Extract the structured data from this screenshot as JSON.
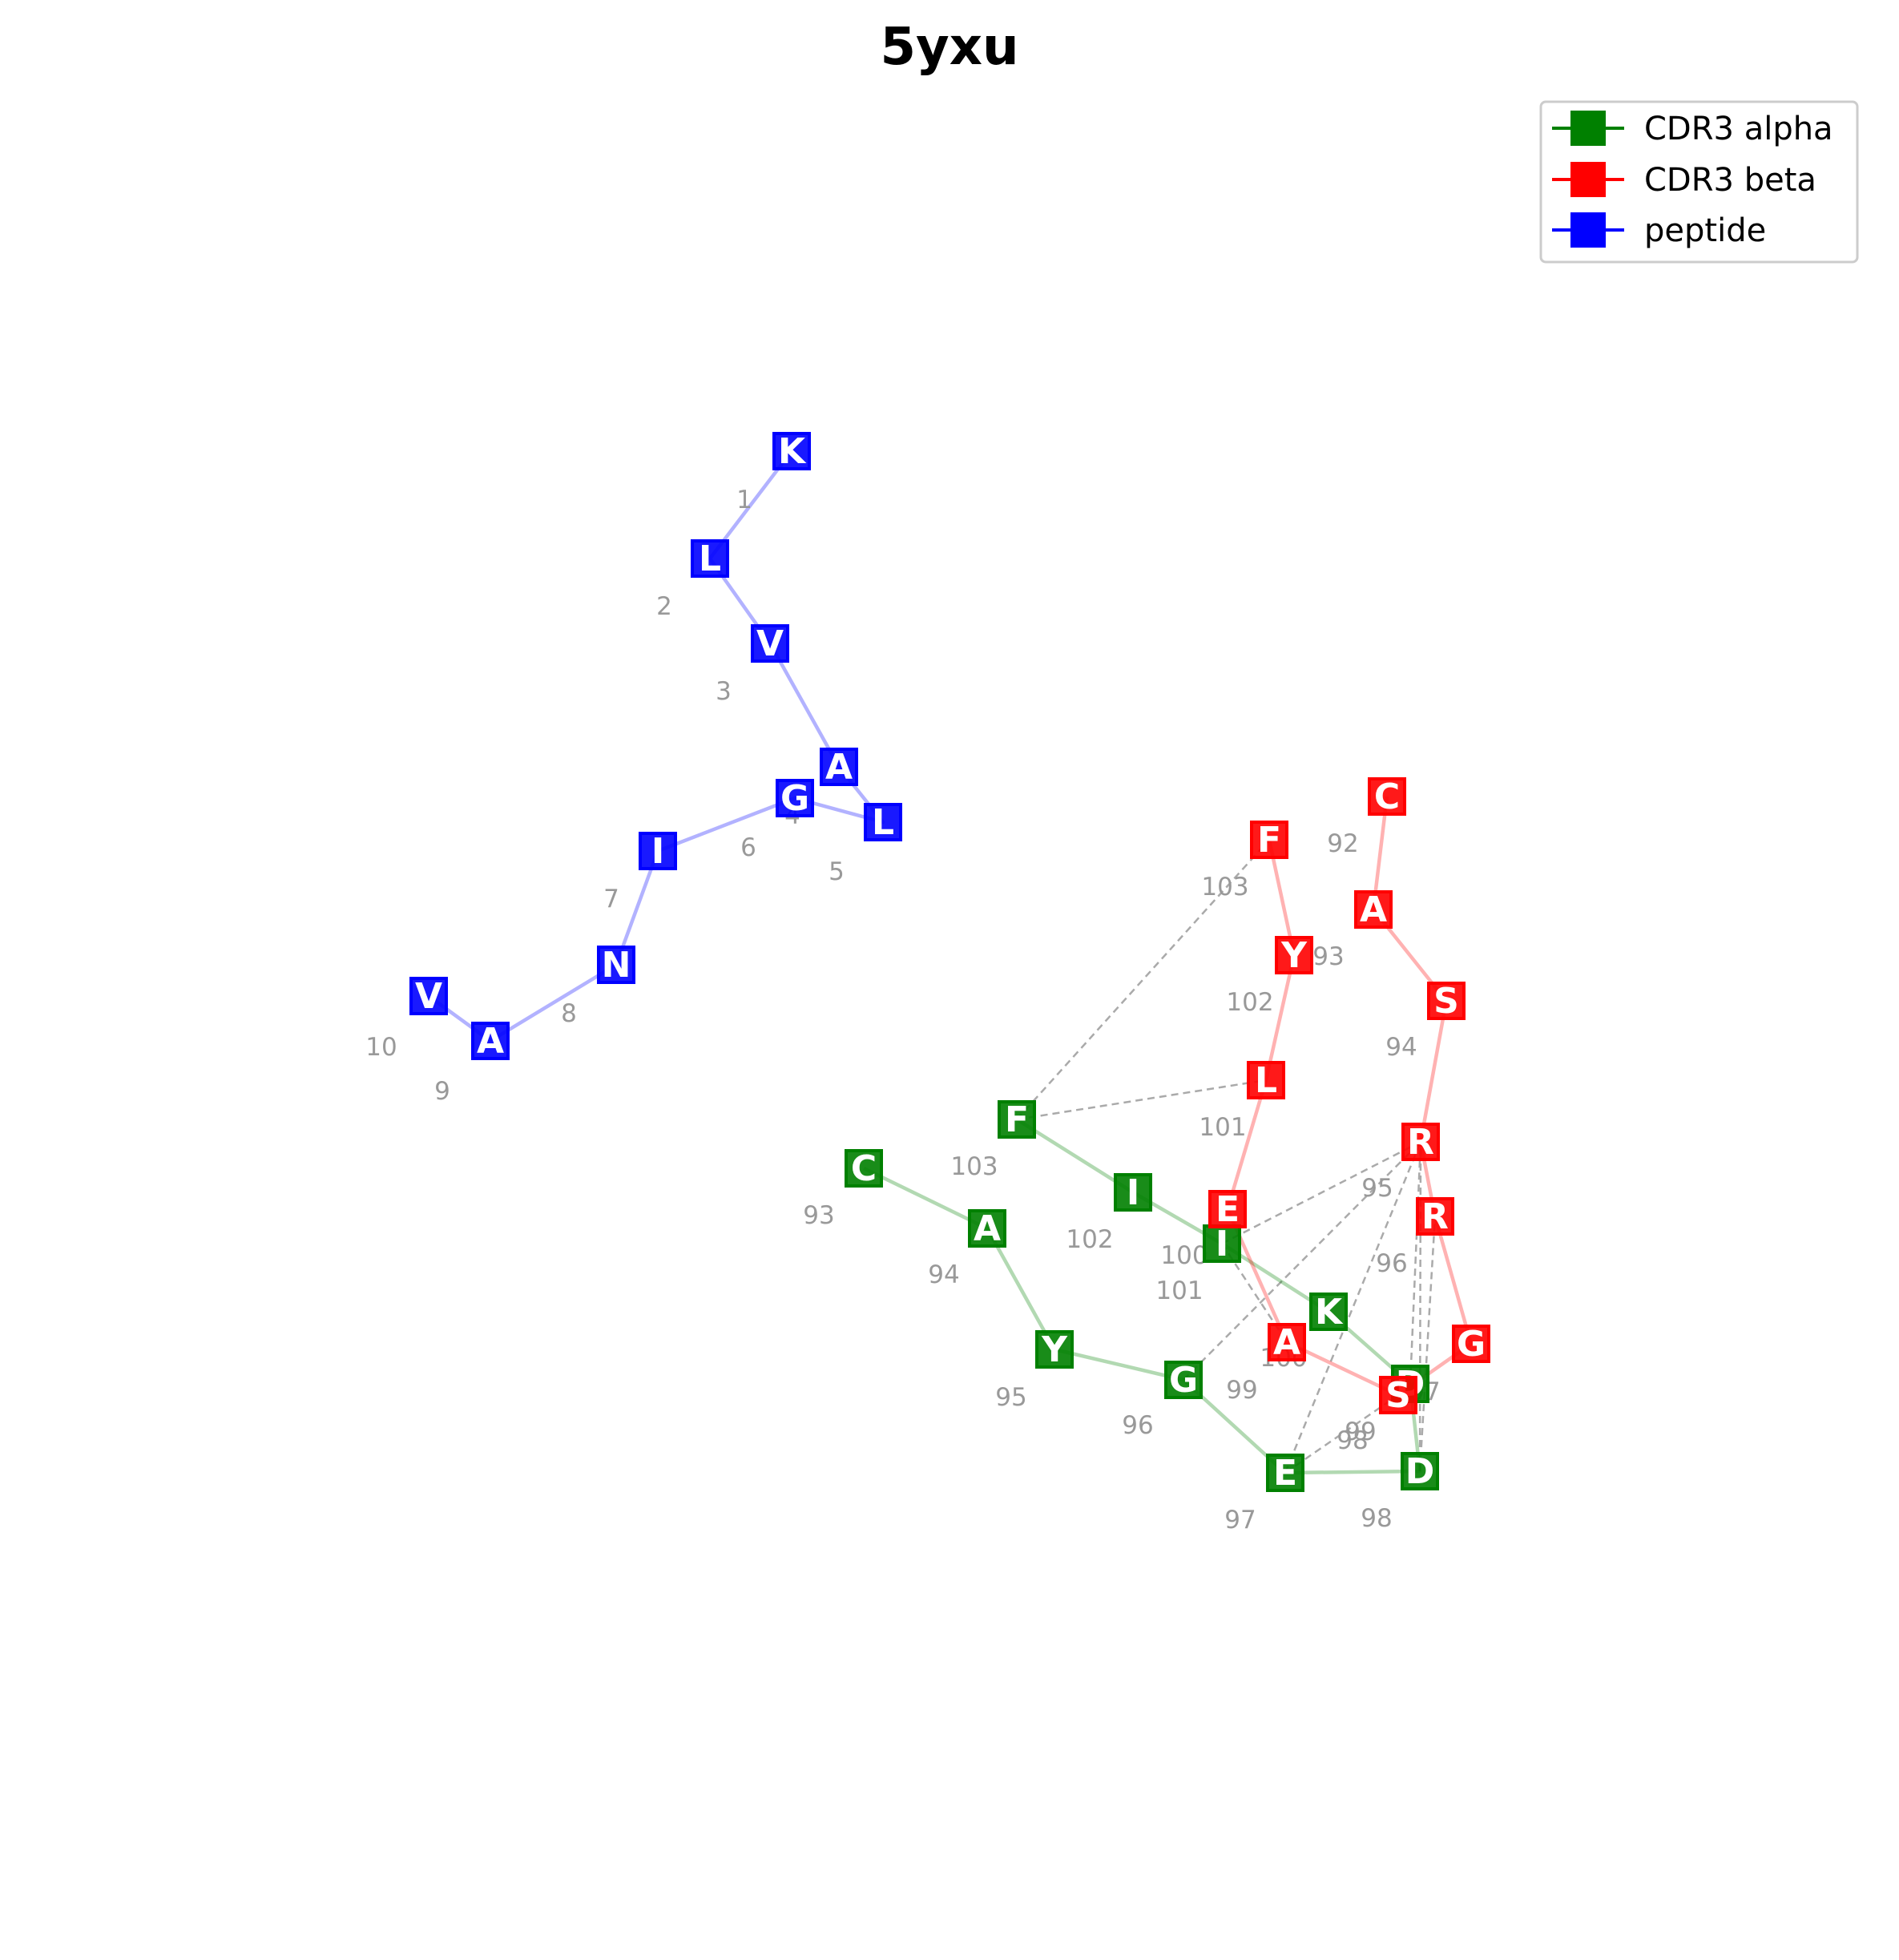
{
  "title": "5yxu",
  "legend": {
    "placement": "top-right",
    "entries": [
      {
        "label": "CDR3 alpha",
        "color": "#008000"
      },
      {
        "label": "CDR3 beta",
        "color": "#ff0000"
      },
      {
        "label": "peptide",
        "color": "#0000ff"
      }
    ]
  },
  "chains": [
    {
      "id": "peptide",
      "color": "#0000ff",
      "residues": [
        {
          "aa": "K",
          "num": "1"
        },
        {
          "aa": "L",
          "num": "2"
        },
        {
          "aa": "V",
          "num": "3"
        },
        {
          "aa": "A",
          "num": "4"
        },
        {
          "aa": "L",
          "num": "5"
        },
        {
          "aa": "G",
          "num": "6"
        },
        {
          "aa": "I",
          "num": "7"
        },
        {
          "aa": "N",
          "num": "8"
        },
        {
          "aa": "A",
          "num": "9"
        },
        {
          "aa": "V",
          "num": "10"
        }
      ]
    },
    {
      "id": "cdr3_alpha",
      "color": "#008000",
      "residues": [
        {
          "aa": "C",
          "num": "93"
        },
        {
          "aa": "A",
          "num": "94"
        },
        {
          "aa": "Y",
          "num": "95"
        },
        {
          "aa": "G",
          "num": "96"
        },
        {
          "aa": "E",
          "num": "97"
        },
        {
          "aa": "D",
          "num": "98"
        },
        {
          "aa": "D",
          "num": "99"
        },
        {
          "aa": "K",
          "num": "100"
        },
        {
          "aa": "I",
          "num": "101"
        },
        {
          "aa": "I",
          "num": "102"
        },
        {
          "aa": "F",
          "num": "103"
        }
      ]
    },
    {
      "id": "cdr3_beta",
      "color": "#ff0000",
      "residues": [
        {
          "aa": "C",
          "num": "92"
        },
        {
          "aa": "A",
          "num": "93"
        },
        {
          "aa": "S",
          "num": "94"
        },
        {
          "aa": "R",
          "num": "95"
        },
        {
          "aa": "R",
          "num": "96"
        },
        {
          "aa": "G",
          "num": "97"
        },
        {
          "aa": "S",
          "num": "98"
        },
        {
          "aa": "A",
          "num": "99"
        },
        {
          "aa": "E",
          "num": "100"
        },
        {
          "aa": "L",
          "num": "101"
        },
        {
          "aa": "Y",
          "num": "102"
        },
        {
          "aa": "F",
          "num": "103"
        }
      ]
    }
  ],
  "contacts": [
    [
      "cdr3_alpha:103",
      "cdr3_beta:103"
    ],
    [
      "cdr3_alpha:103",
      "cdr3_beta:101"
    ],
    [
      "cdr3_alpha:101",
      "cdr3_beta:95"
    ],
    [
      "cdr3_alpha:101",
      "cdr3_beta:99"
    ],
    [
      "cdr3_alpha:96",
      "cdr3_beta:95"
    ],
    [
      "cdr3_alpha:97",
      "cdr3_beta:95"
    ],
    [
      "cdr3_alpha:98",
      "cdr3_beta:95"
    ],
    [
      "cdr3_alpha:99",
      "cdr3_beta:95"
    ],
    [
      "cdr3_alpha:98",
      "cdr3_beta:96"
    ],
    [
      "cdr3_alpha:97",
      "cdr3_beta:98"
    ],
    [
      "cdr3_alpha:99",
      "cdr3_beta:98"
    ]
  ]
}
